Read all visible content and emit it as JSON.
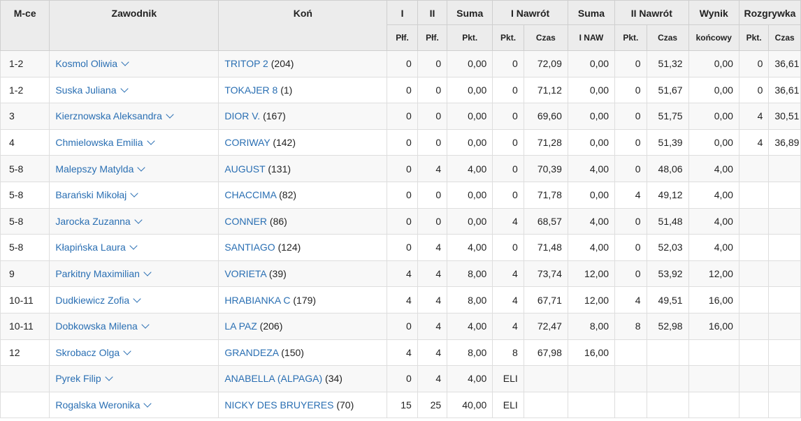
{
  "header": {
    "top": {
      "place": "M-ce",
      "rider": "Zawodnik",
      "horse": "Koń",
      "r1": "I",
      "r2": "II",
      "sum": "Suma",
      "jo1": "I Nawrót",
      "jo1_sum": "Suma",
      "jo2": "II Nawrót",
      "result": "Wynik",
      "playoff": "Rozgrywka"
    },
    "sub": {
      "r1": "Płf.",
      "r2": "Płf.",
      "sum": "Pkt.",
      "jo1_pts": "Pkt.",
      "jo1_time": "Czas",
      "jo1_sum": "I NAW",
      "jo2_pts": "Pkt.",
      "jo2_time": "Czas",
      "result": "końcowy",
      "po_pts": "Pkt.",
      "po_time": "Czas"
    }
  },
  "rows": [
    {
      "place": "1-2",
      "rider": "Kosmol Oliwia",
      "horse": "TRITOP 2",
      "horse_no": "(204)",
      "r1": "0",
      "r2": "0",
      "sum": "0,00",
      "jo1_pts": "0",
      "jo1_time": "72,09",
      "jo1_sum": "0,00",
      "jo2_pts": "0",
      "jo2_time": "51,32",
      "result": "0,00",
      "po_pts": "0",
      "po_time": "36,61"
    },
    {
      "place": "1-2",
      "rider": "Suska Juliana",
      "horse": "TOKAJER 8",
      "horse_no": "(1)",
      "r1": "0",
      "r2": "0",
      "sum": "0,00",
      "jo1_pts": "0",
      "jo1_time": "71,12",
      "jo1_sum": "0,00",
      "jo2_pts": "0",
      "jo2_time": "51,67",
      "result": "0,00",
      "po_pts": "0",
      "po_time": "36,61"
    },
    {
      "place": "3",
      "rider": "Kierznowska Aleksandra",
      "horse": "DIOR V.",
      "horse_no": "(167)",
      "r1": "0",
      "r2": "0",
      "sum": "0,00",
      "jo1_pts": "0",
      "jo1_time": "69,60",
      "jo1_sum": "0,00",
      "jo2_pts": "0",
      "jo2_time": "51,75",
      "result": "0,00",
      "po_pts": "4",
      "po_time": "30,51"
    },
    {
      "place": "4",
      "rider": "Chmielowska Emilia",
      "horse": "CORIWAY",
      "horse_no": "(142)",
      "r1": "0",
      "r2": "0",
      "sum": "0,00",
      "jo1_pts": "0",
      "jo1_time": "71,28",
      "jo1_sum": "0,00",
      "jo2_pts": "0",
      "jo2_time": "51,39",
      "result": "0,00",
      "po_pts": "4",
      "po_time": "36,89"
    },
    {
      "place": "5-8",
      "rider": "Malepszy Matylda",
      "horse": "AUGUST",
      "horse_no": "(131)",
      "r1": "0",
      "r2": "4",
      "sum": "4,00",
      "jo1_pts": "0",
      "jo1_time": "70,39",
      "jo1_sum": "4,00",
      "jo2_pts": "0",
      "jo2_time": "48,06",
      "result": "4,00",
      "po_pts": "",
      "po_time": ""
    },
    {
      "place": "5-8",
      "rider": "Barański Mikołaj",
      "horse": "CHACCIMA",
      "horse_no": "(82)",
      "r1": "0",
      "r2": "0",
      "sum": "0,00",
      "jo1_pts": "0",
      "jo1_time": "71,78",
      "jo1_sum": "0,00",
      "jo2_pts": "4",
      "jo2_time": "49,12",
      "result": "4,00",
      "po_pts": "",
      "po_time": ""
    },
    {
      "place": "5-8",
      "rider": "Jarocka Zuzanna",
      "horse": "CONNER",
      "horse_no": "(86)",
      "r1": "0",
      "r2": "0",
      "sum": "0,00",
      "jo1_pts": "4",
      "jo1_time": "68,57",
      "jo1_sum": "4,00",
      "jo2_pts": "0",
      "jo2_time": "51,48",
      "result": "4,00",
      "po_pts": "",
      "po_time": ""
    },
    {
      "place": "5-8",
      "rider": "Kłapińska Laura",
      "horse": "SANTIAGO",
      "horse_no": "(124)",
      "r1": "0",
      "r2": "4",
      "sum": "4,00",
      "jo1_pts": "0",
      "jo1_time": "71,48",
      "jo1_sum": "4,00",
      "jo2_pts": "0",
      "jo2_time": "52,03",
      "result": "4,00",
      "po_pts": "",
      "po_time": ""
    },
    {
      "place": "9",
      "rider": "Parkitny Maximilian",
      "horse": "VORIETA",
      "horse_no": "(39)",
      "r1": "4",
      "r2": "4",
      "sum": "8,00",
      "jo1_pts": "4",
      "jo1_time": "73,74",
      "jo1_sum": "12,00",
      "jo2_pts": "0",
      "jo2_time": "53,92",
      "result": "12,00",
      "po_pts": "",
      "po_time": ""
    },
    {
      "place": "10-11",
      "rider": "Dudkiewicz Zofia",
      "horse": "HRABIANKA C",
      "horse_no": "(179)",
      "r1": "4",
      "r2": "4",
      "sum": "8,00",
      "jo1_pts": "4",
      "jo1_time": "67,71",
      "jo1_sum": "12,00",
      "jo2_pts": "4",
      "jo2_time": "49,51",
      "result": "16,00",
      "po_pts": "",
      "po_time": ""
    },
    {
      "place": "10-11",
      "rider": "Dobkowska Milena",
      "horse": "LA PAZ",
      "horse_no": "(206)",
      "r1": "0",
      "r2": "4",
      "sum": "4,00",
      "jo1_pts": "4",
      "jo1_time": "72,47",
      "jo1_sum": "8,00",
      "jo2_pts": "8",
      "jo2_time": "52,98",
      "result": "16,00",
      "po_pts": "",
      "po_time": ""
    },
    {
      "place": "12",
      "rider": "Skrobacz Olga",
      "horse": "GRANDEZA",
      "horse_no": "(150)",
      "r1": "4",
      "r2": "4",
      "sum": "8,00",
      "jo1_pts": "8",
      "jo1_time": "67,98",
      "jo1_sum": "16,00",
      "jo2_pts": "",
      "jo2_time": "",
      "result": "",
      "po_pts": "",
      "po_time": ""
    },
    {
      "place": "",
      "rider": "Pyrek Filip",
      "horse": "ANABELLA (ALPAGA)",
      "horse_no": "(34)",
      "r1": "0",
      "r2": "4",
      "sum": "4,00",
      "jo1_pts": "ELI",
      "jo1_time": "",
      "jo1_sum": "",
      "jo2_pts": "",
      "jo2_time": "",
      "result": "",
      "po_pts": "",
      "po_time": ""
    },
    {
      "place": "",
      "rider": "Rogalska Weronika",
      "horse": "NICKY DES BRUYERES",
      "horse_no": "(70)",
      "r1": "15",
      "r2": "25",
      "sum": "40,00",
      "jo1_pts": "ELI",
      "jo1_time": "",
      "jo1_sum": "",
      "jo2_pts": "",
      "jo2_time": "",
      "result": "",
      "po_pts": "",
      "po_time": ""
    }
  ]
}
